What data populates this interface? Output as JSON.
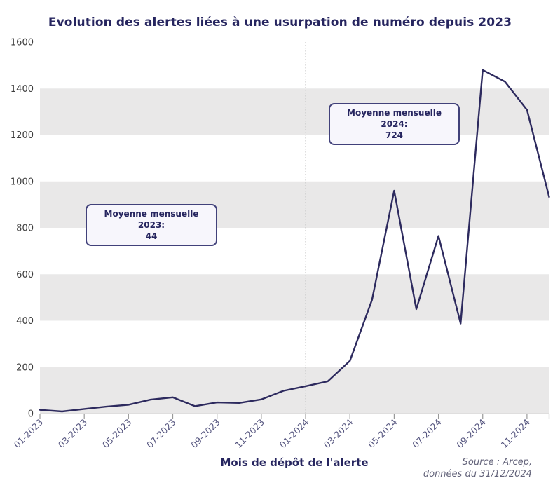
{
  "title": "Evolution des alertes liées à une usurpation de numéro depuis 2023",
  "xlabel": "Mois de dépôt de l'alerte",
  "source": {
    "line1": "Source : Arcep,",
    "line2": "données du 31/12/2024"
  },
  "annotations": {
    "avg2023": {
      "line1": "Moyenne mensuelle 2023:",
      "line2": "44"
    },
    "avg2024": {
      "line1": "Moyenne mensuelle 2024:",
      "line2": "724"
    }
  },
  "colors": {
    "line": "#2d2a5e",
    "band": "#e9e8e8",
    "title_text": "#26255f",
    "y_tick_text": "#3d3d3d",
    "x_tick_text": "#55557f",
    "tick_mark": "#999999",
    "axis_line": "#d5d5d5",
    "separator": "#c4c4c4"
  },
  "chart_data": {
    "type": "line",
    "title": "Evolution des alertes liées à une usurpation de numéro depuis 2023",
    "xlabel": "Mois de dépôt de l'alerte",
    "ylabel": "",
    "x": [
      "01-2023",
      "02-2023",
      "03-2023",
      "04-2023",
      "05-2023",
      "06-2023",
      "07-2023",
      "08-2023",
      "09-2023",
      "10-2023",
      "11-2023",
      "12-2023",
      "01-2024",
      "02-2024",
      "03-2024",
      "04-2024",
      "05-2024",
      "06-2024",
      "07-2024",
      "08-2024",
      "09-2024",
      "10-2024",
      "11-2024",
      "12-2024"
    ],
    "values": [
      16,
      9,
      20,
      30,
      38,
      60,
      70,
      32,
      48,
      46,
      61,
      98,
      118,
      139,
      227,
      490,
      960,
      450,
      765,
      388,
      1480,
      1430,
      1308,
      933
    ],
    "x_tick_labels": [
      "01-2023",
      "03-2023",
      "05-2023",
      "07-2023",
      "09-2023",
      "11-2023",
      "01-2024",
      "03-2024",
      "05-2024",
      "07-2024",
      "09-2024",
      "11-2024"
    ],
    "y_ticks": [
      0,
      200,
      400,
      600,
      800,
      1000,
      1200,
      1400,
      1600
    ],
    "ylim": [
      0,
      1600
    ],
    "shaded_bands": [
      [
        0,
        200
      ],
      [
        400,
        600
      ],
      [
        800,
        1000
      ],
      [
        1200,
        1400
      ]
    ],
    "separator_x": "01-2024",
    "legend": "none",
    "grid": "alternating-horizontal-bands",
    "annotations": [
      {
        "text": "Moyenne mensuelle 2023: 44",
        "applies_to": "2023"
      },
      {
        "text": "Moyenne mensuelle 2024: 724",
        "applies_to": "2024"
      }
    ]
  }
}
